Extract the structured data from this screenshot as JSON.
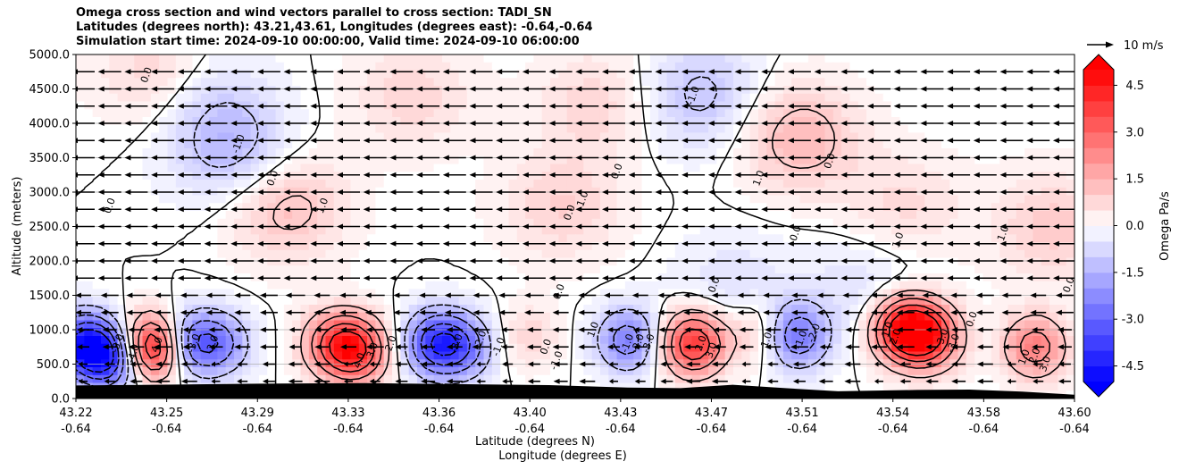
{
  "title": {
    "line1": "Omega cross section and wind vectors parallel to cross section: TADI_SN",
    "line2": "Latitudes (degrees north): 43.21,43.61, Longitudes (degrees east): -0.64,-0.64",
    "line3": "Simulation start time: 2024-09-10 00:00:00, Valid time: 2024-09-10 06:00:00"
  },
  "chart_data": {
    "type": "heatmap",
    "title": "Omega cross section and wind vectors parallel to cross section: TADI_SN",
    "xlabel": "Latitude (degrees N)",
    "xlabel2": "Longitude (degrees E)",
    "ylabel": "Altitude (meters)",
    "xlim": [
      43.22,
      43.6
    ],
    "ylim": [
      0,
      5000
    ],
    "grid": "horizontal",
    "x_ticks": [
      {
        "lat": "43.22",
        "lon": "-0.64"
      },
      {
        "lat": "43.25",
        "lon": "-0.64"
      },
      {
        "lat": "43.29",
        "lon": "-0.64"
      },
      {
        "lat": "43.33",
        "lon": "-0.64"
      },
      {
        "lat": "43.36",
        "lon": "-0.64"
      },
      {
        "lat": "43.40",
        "lon": "-0.64"
      },
      {
        "lat": "43.43",
        "lon": "-0.64"
      },
      {
        "lat": "43.47",
        "lon": "-0.64"
      },
      {
        "lat": "43.51",
        "lon": "-0.64"
      },
      {
        "lat": "43.54",
        "lon": "-0.64"
      },
      {
        "lat": "43.58",
        "lon": "-0.64"
      },
      {
        "lat": "43.60",
        "lon": "-0.64"
      }
    ],
    "y_ticks": [
      "0.0",
      "500.0",
      "1000.0",
      "1500.0",
      "2000.0",
      "2500.0",
      "3000.0",
      "3500.0",
      "4000.0",
      "4500.0",
      "5000.0"
    ],
    "y_tick_values": [
      0,
      500,
      1000,
      1500,
      2000,
      2500,
      3000,
      3500,
      4000,
      4500,
      5000
    ],
    "colorbar": {
      "label": "Omega Pa/s",
      "range": [
        -5,
        5
      ],
      "extend": "both",
      "ticks": [
        "-4.5",
        "-3.0",
        "-1.5",
        "0.0",
        "1.5",
        "3.0",
        "4.5"
      ],
      "tick_values": [
        -4.5,
        -3.0,
        -1.5,
        0.0,
        1.5,
        3.0,
        4.5
      ],
      "negative_color": "#0000ff",
      "positive_color": "#ff0000"
    },
    "vector_key": {
      "label": "10 m/s",
      "speed": 10
    },
    "wind_direction": "north-to-south (toward lower latitude)",
    "omega_features": [
      {
        "lat": 43.222,
        "alt": 800,
        "omega": -3.5
      },
      {
        "lat": 43.232,
        "alt": 600,
        "omega": -4.0
      },
      {
        "lat": 43.25,
        "alt": 750,
        "omega": 5.0
      },
      {
        "lat": 43.262,
        "alt": 800,
        "omega": -3.0
      },
      {
        "lat": 43.275,
        "alt": 800,
        "omega": -2.0
      },
      {
        "lat": 43.318,
        "alt": 800,
        "omega": 2.5
      },
      {
        "lat": 43.327,
        "alt": 700,
        "omega": 3.5
      },
      {
        "lat": 43.357,
        "alt": 800,
        "omega": -3.5
      },
      {
        "lat": 43.368,
        "alt": 750,
        "omega": -2.0
      },
      {
        "lat": 43.392,
        "alt": 900,
        "omega": 0.8
      },
      {
        "lat": 43.43,
        "alt": 850,
        "omega": -2.5
      },
      {
        "lat": 43.455,
        "alt": 800,
        "omega": 4.0
      },
      {
        "lat": 43.48,
        "alt": 950,
        "omega": 1.2
      },
      {
        "lat": 43.494,
        "alt": 900,
        "omega": -2.8
      },
      {
        "lat": 43.535,
        "alt": 1000,
        "omega": 4.5
      },
      {
        "lat": 43.545,
        "alt": 900,
        "omega": 3.5
      },
      {
        "lat": 43.585,
        "alt": 750,
        "omega": 2.5
      },
      {
        "lat": 43.3,
        "alt": 2800,
        "omega": 1.3
      },
      {
        "lat": 43.28,
        "alt": 3600,
        "omega": -1.3
      },
      {
        "lat": 43.268,
        "alt": 4400,
        "omega": -0.8
      },
      {
        "lat": 43.348,
        "alt": 4400,
        "omega": 0.8
      },
      {
        "lat": 43.405,
        "alt": 2800,
        "omega": 0.9
      },
      {
        "lat": 43.418,
        "alt": 4300,
        "omega": 0.8
      },
      {
        "lat": 43.458,
        "alt": 4400,
        "omega": -1.2
      },
      {
        "lat": 43.495,
        "alt": 3800,
        "omega": 1.4
      },
      {
        "lat": 43.535,
        "alt": 2800,
        "omega": 0.7
      },
      {
        "lat": 43.592,
        "alt": 2500,
        "omega": 1.0
      },
      {
        "lat": 43.252,
        "alt": 4700,
        "omega": 1.0
      },
      {
        "lat": 43.47,
        "alt": 1600,
        "omega": -0.6
      },
      {
        "lat": 43.52,
        "alt": 1600,
        "omega": -0.6
      }
    ],
    "contour_labels": [
      {
        "text": "0.0",
        "lat": 43.247,
        "alt": 4700
      },
      {
        "text": "-1.0",
        "lat": 43.282,
        "alt": 3700
      },
      {
        "text": "0.0",
        "lat": 43.295,
        "alt": 3200
      },
      {
        "text": "1.0",
        "lat": 43.314,
        "alt": 2800
      },
      {
        "text": "0.0",
        "lat": 43.233,
        "alt": 2800
      },
      {
        "text": "1.0",
        "lat": 43.413,
        "alt": 2900
      },
      {
        "text": "0.0",
        "lat": 43.408,
        "alt": 2700
      },
      {
        "text": "0.0",
        "lat": 43.426,
        "alt": 3300
      },
      {
        "text": "-1.0",
        "lat": 43.455,
        "alt": 4400
      },
      {
        "text": "1.0",
        "lat": 43.48,
        "alt": 3200
      },
      {
        "text": "0.0",
        "lat": 43.507,
        "alt": 3450
      },
      {
        "text": "0.0",
        "lat": 43.494,
        "alt": 2400
      },
      {
        "text": "1.0",
        "lat": 43.533,
        "alt": 2300
      },
      {
        "text": "1.0",
        "lat": 43.573,
        "alt": 2400
      },
      {
        "text": "0.0",
        "lat": 43.598,
        "alt": 1650
      },
      {
        "text": "0.0",
        "lat": 43.404,
        "alt": 1550
      },
      {
        "text": "0.0",
        "lat": 43.463,
        "alt": 1650
      },
      {
        "text": "0.0",
        "lat": 43.561,
        "alt": 1150
      },
      {
        "text": "-3.0",
        "lat": 43.236,
        "alt": 800
      },
      {
        "text": "-4.0",
        "lat": 43.242,
        "alt": 650
      },
      {
        "text": "4.0",
        "lat": 43.251,
        "alt": 780
      },
      {
        "text": "-3.0",
        "lat": 43.265,
        "alt": 800
      },
      {
        "text": "-2.0",
        "lat": 43.272,
        "alt": 780
      },
      {
        "text": "4.0",
        "lat": 43.328,
        "alt": 550
      },
      {
        "text": "3.0",
        "lat": 43.333,
        "alt": 700
      },
      {
        "text": "2.0",
        "lat": 43.34,
        "alt": 800
      },
      {
        "text": "-3.0",
        "lat": 43.365,
        "alt": 800
      },
      {
        "text": "-2.0",
        "lat": 43.374,
        "alt": 850
      },
      {
        "text": "-1.0",
        "lat": 43.381,
        "alt": 750
      },
      {
        "text": "0.0",
        "lat": 43.399,
        "alt": 750
      },
      {
        "text": "-1.0",
        "lat": 43.403,
        "alt": 550
      },
      {
        "text": "1.0",
        "lat": 43.417,
        "alt": 1000
      },
      {
        "text": "-1.0",
        "lat": 43.43,
        "alt": 800
      },
      {
        "text": "-2.0",
        "lat": 43.434,
        "alt": 800
      },
      {
        "text": "-3.0",
        "lat": 43.438,
        "alt": 800
      },
      {
        "text": "2.0",
        "lat": 43.458,
        "alt": 800
      },
      {
        "text": "3.0",
        "lat": 43.462,
        "alt": 700
      },
      {
        "text": "1.0",
        "lat": 43.483,
        "alt": 850
      },
      {
        "text": "-1.0",
        "lat": 43.496,
        "alt": 850
      },
      {
        "text": "-2.0",
        "lat": 43.501,
        "alt": 950
      },
      {
        "text": "1.0",
        "lat": 43.529,
        "alt": 1000
      },
      {
        "text": "2.0",
        "lat": 43.532,
        "alt": 900
      },
      {
        "text": "3.0",
        "lat": 43.55,
        "alt": 900
      },
      {
        "text": "-3.0",
        "lat": 43.554,
        "alt": 800
      },
      {
        "text": "1.0",
        "lat": 43.581,
        "alt": 600
      },
      {
        "text": "2.0",
        "lat": 43.585,
        "alt": 620
      },
      {
        "text": "3.0",
        "lat": 43.589,
        "alt": 500
      }
    ]
  }
}
